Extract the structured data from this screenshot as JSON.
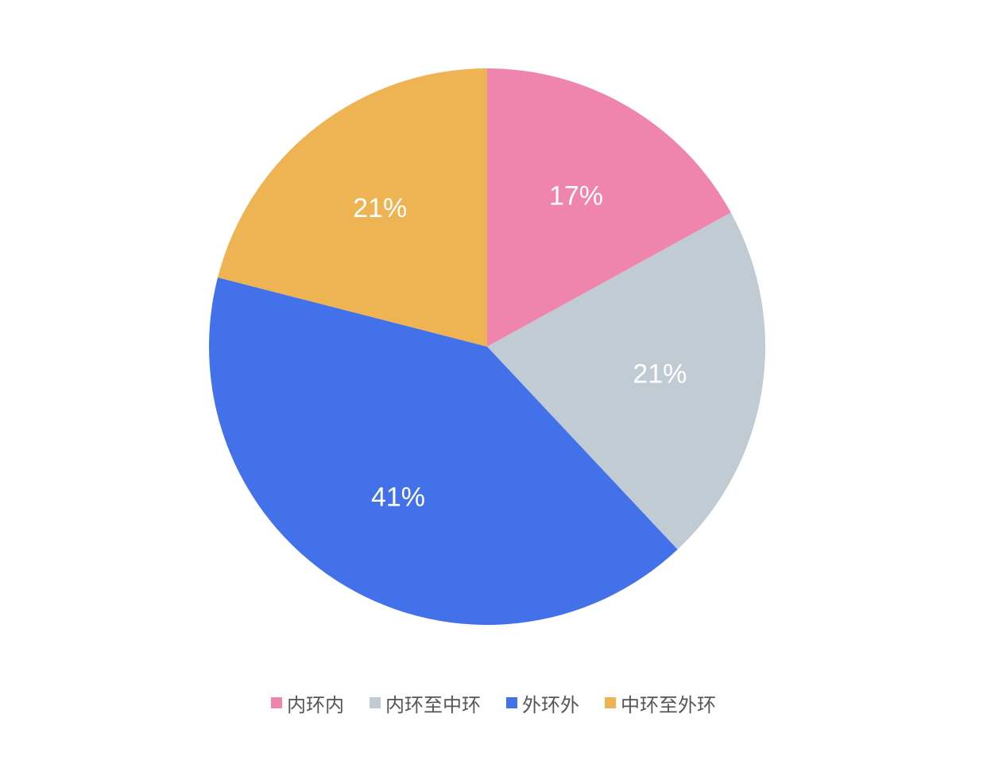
{
  "chart_data": {
    "type": "pie",
    "categories": [
      "内环内",
      "内环至中环",
      "外环外",
      "中环至外环"
    ],
    "values": [
      17,
      21,
      41,
      21
    ],
    "labels": [
      "17%",
      "21%",
      "41%",
      "21%"
    ],
    "colors": [
      "#EF84AC",
      "#C1CBD4",
      "#4271E9",
      "#EEB353"
    ],
    "start_angle_deg": 0,
    "direction": "clockwise",
    "legend_position": "bottom"
  }
}
